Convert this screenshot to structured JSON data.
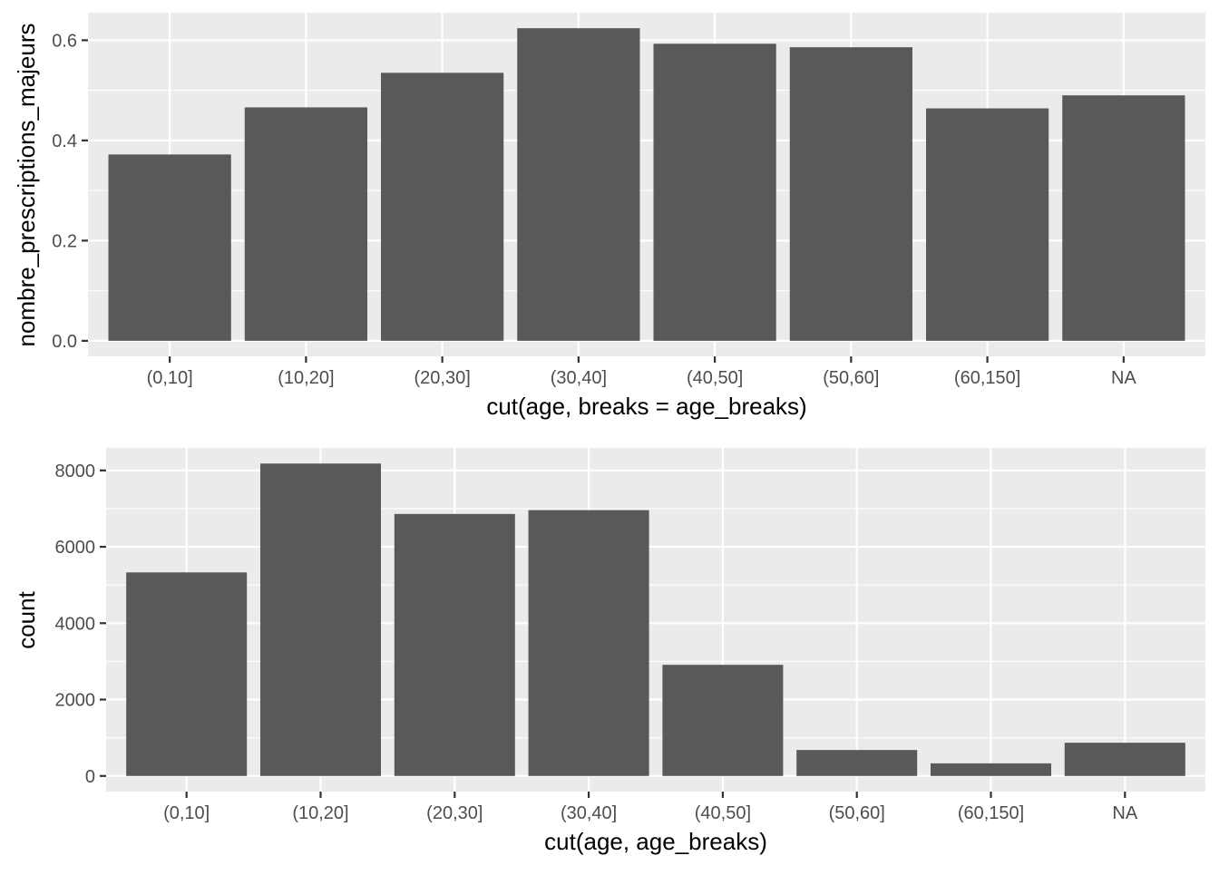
{
  "chart_data": [
    {
      "type": "bar",
      "categories": [
        "(0,10]",
        "(10,20]",
        "(20,30]",
        "(30,40]",
        "(40,50]",
        "(50,60]",
        "(60,150]",
        "NA"
      ],
      "values": [
        0.372,
        0.466,
        0.535,
        0.624,
        0.593,
        0.586,
        0.464,
        0.49
      ],
      "xlabel": "cut(age, breaks = age_breaks)",
      "ylabel": "nombre_prescriptions_majeurs",
      "ylim": [
        -0.031,
        0.655
      ],
      "yticks": [
        0.0,
        0.2,
        0.4,
        0.6
      ],
      "ytick_labels": [
        "0.0",
        "0.2",
        "0.4",
        "0.6"
      ],
      "grid": true,
      "bar_color": "#595959",
      "panel_color": "#ebebeb"
    },
    {
      "type": "bar",
      "categories": [
        "(0,10]",
        "(10,20]",
        "(20,30]",
        "(30,40]",
        "(40,50]",
        "(50,60]",
        "(60,150]",
        "NA"
      ],
      "values": [
        5330,
        8180,
        6860,
        6960,
        2910,
        680,
        330,
        870
      ],
      "xlabel": "cut(age, age_breaks)",
      "ylabel": "count",
      "ylim": [
        -409,
        8589
      ],
      "yticks": [
        0,
        2000,
        4000,
        6000,
        8000
      ],
      "ytick_labels": [
        "0",
        "2000",
        "4000",
        "6000",
        "8000"
      ],
      "grid": true,
      "bar_color": "#595959",
      "panel_color": "#ebebeb"
    }
  ]
}
